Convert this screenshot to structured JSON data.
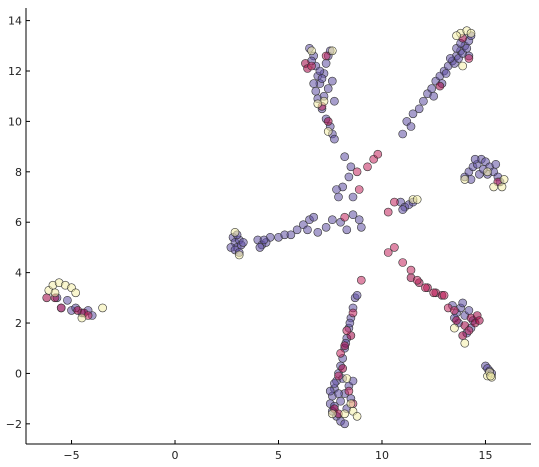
{
  "chart_data": {
    "type": "scatter",
    "title": "",
    "xlabel": "",
    "ylabel": "",
    "xlim": [
      -7.2,
      17.2
    ],
    "ylim": [
      -2.8,
      14.5
    ],
    "xticks": [
      -5,
      0,
      5,
      10,
      15
    ],
    "yticks": [
      -2,
      0,
      2,
      4,
      6,
      8,
      10,
      12,
      14
    ],
    "xtick_labels": [
      "−5",
      "0",
      "5",
      "10",
      "15"
    ],
    "ytick_labels": [
      "−2",
      "0",
      "2",
      "4",
      "6",
      "8",
      "10",
      "12",
      "14"
    ],
    "grid": false,
    "legend": "none",
    "colors": {
      "indigo": "#5e4fa2",
      "maroon": "#9e0142",
      "crimson": "#c2255c",
      "cream": "#f4efa8"
    },
    "point_alpha": 0.55,
    "series": [
      {
        "color": "indigo",
        "points": [
          [
            -5.5,
            2.6
          ],
          [
            -5.2,
            2.9
          ],
          [
            -5.0,
            2.5
          ],
          [
            -4.8,
            2.6
          ],
          [
            -4.5,
            2.4
          ],
          [
            -4.2,
            2.5
          ],
          [
            -4.0,
            2.3
          ],
          [
            -5.7,
            3.0
          ],
          [
            2.8,
            5.4
          ],
          [
            2.9,
            5.2
          ],
          [
            3.0,
            5.0
          ],
          [
            3.1,
            5.3
          ],
          [
            3.2,
            5.1
          ],
          [
            2.7,
            5.0
          ],
          [
            3.0,
            5.5
          ],
          [
            3.3,
            5.2
          ],
          [
            2.9,
            4.9
          ],
          [
            3.1,
            4.8
          ],
          [
            4.0,
            5.3
          ],
          [
            4.2,
            5.1
          ],
          [
            4.4,
            5.2
          ],
          [
            4.6,
            5.4
          ],
          [
            4.1,
            5.0
          ],
          [
            4.3,
            5.3
          ],
          [
            5.0,
            5.4
          ],
          [
            5.3,
            5.5
          ],
          [
            5.6,
            5.5
          ],
          [
            5.9,
            5.7
          ],
          [
            6.2,
            5.9
          ],
          [
            6.5,
            6.1
          ],
          [
            6.7,
            6.2
          ],
          [
            6.4,
            5.7
          ],
          [
            6.9,
            5.6
          ],
          [
            7.3,
            5.8
          ],
          [
            7.6,
            6.1
          ],
          [
            8.0,
            6.0
          ],
          [
            8.3,
            5.7
          ],
          [
            8.6,
            6.3
          ],
          [
            8.9,
            6.1
          ],
          [
            9.0,
            5.8
          ],
          [
            7.9,
            7.0
          ],
          [
            8.1,
            7.4
          ],
          [
            8.4,
            7.8
          ],
          [
            8.5,
            8.2
          ],
          [
            8.2,
            8.6
          ],
          [
            7.8,
            7.3
          ],
          [
            8.6,
            7.0
          ],
          [
            6.5,
            12.9
          ],
          [
            6.7,
            12.6
          ],
          [
            6.8,
            12.2
          ],
          [
            6.9,
            11.8
          ],
          [
            7.0,
            11.5
          ],
          [
            7.2,
            11.9
          ],
          [
            7.3,
            12.3
          ],
          [
            7.4,
            12.6
          ],
          [
            7.5,
            12.8
          ],
          [
            6.8,
            11.2
          ],
          [
            6.9,
            10.9
          ],
          [
            7.1,
            10.5
          ],
          [
            7.3,
            10.1
          ],
          [
            7.5,
            9.8
          ],
          [
            7.6,
            9.5
          ],
          [
            7.7,
            9.3
          ],
          [
            7.0,
            12.0
          ],
          [
            6.6,
            12.4
          ],
          [
            7.1,
            11.7
          ],
          [
            7.6,
            11.6
          ],
          [
            7.4,
            11.3
          ],
          [
            7.2,
            11.0
          ],
          [
            7.7,
            10.8
          ],
          [
            6.7,
            11.5
          ],
          [
            11.2,
            10.0
          ],
          [
            11.5,
            10.3
          ],
          [
            11.8,
            10.5
          ],
          [
            12.0,
            10.8
          ],
          [
            12.2,
            11.1
          ],
          [
            12.4,
            11.3
          ],
          [
            12.6,
            11.6
          ],
          [
            12.8,
            11.8
          ],
          [
            13.0,
            12.0
          ],
          [
            13.2,
            12.2
          ],
          [
            13.4,
            12.4
          ],
          [
            13.6,
            12.6
          ],
          [
            13.8,
            12.8
          ],
          [
            14.0,
            13.0
          ],
          [
            14.2,
            13.2
          ],
          [
            14.3,
            13.4
          ],
          [
            13.5,
            12.3
          ],
          [
            13.7,
            12.5
          ],
          [
            13.9,
            12.7
          ],
          [
            14.1,
            12.9
          ],
          [
            13.3,
            12.5
          ],
          [
            13.6,
            12.9
          ],
          [
            14.2,
            12.6
          ],
          [
            13.8,
            13.1
          ],
          [
            11.0,
            9.5
          ],
          [
            11.4,
            9.8
          ],
          [
            12.9,
            11.5
          ],
          [
            12.5,
            11.0
          ],
          [
            13.1,
            11.9
          ],
          [
            14.0,
            7.8
          ],
          [
            14.2,
            8.0
          ],
          [
            14.4,
            8.2
          ],
          [
            14.6,
            8.3
          ],
          [
            14.8,
            8.5
          ],
          [
            15.0,
            8.4
          ],
          [
            15.2,
            8.2
          ],
          [
            15.4,
            8.0
          ],
          [
            15.6,
            7.8
          ],
          [
            15.7,
            7.6
          ],
          [
            14.3,
            7.7
          ],
          [
            14.7,
            7.9
          ],
          [
            15.1,
            7.9
          ],
          [
            15.5,
            8.3
          ],
          [
            14.9,
            8.1
          ],
          [
            14.5,
            8.5
          ],
          [
            10.9,
            6.8
          ],
          [
            11.1,
            6.6
          ],
          [
            11.3,
            6.7
          ],
          [
            11.5,
            6.8
          ],
          [
            11.0,
            6.5
          ],
          [
            13.4,
            2.7
          ],
          [
            13.6,
            2.4
          ],
          [
            13.8,
            2.6
          ],
          [
            14.0,
            2.3
          ],
          [
            14.2,
            2.5
          ],
          [
            14.4,
            2.1
          ],
          [
            13.7,
            2.0
          ],
          [
            14.1,
            1.6
          ],
          [
            14.3,
            1.8
          ],
          [
            13.5,
            2.2
          ],
          [
            13.9,
            2.8
          ],
          [
            15.0,
            0.3
          ],
          [
            15.1,
            0.2
          ],
          [
            15.2,
            0.1
          ],
          [
            15.3,
            0.0
          ],
          [
            8.7,
            3.0
          ],
          [
            8.6,
            2.6
          ],
          [
            8.5,
            2.2
          ],
          [
            8.4,
            1.8
          ],
          [
            8.3,
            1.4
          ],
          [
            8.2,
            1.0
          ],
          [
            8.1,
            0.6
          ],
          [
            8.0,
            0.3
          ],
          [
            7.9,
            0.0
          ],
          [
            7.8,
            -0.3
          ],
          [
            7.7,
            -0.6
          ],
          [
            7.6,
            -0.9
          ],
          [
            7.5,
            -1.2
          ],
          [
            7.6,
            -1.5
          ],
          [
            7.8,
            -1.7
          ],
          [
            8.0,
            -1.9
          ],
          [
            8.2,
            -2.0
          ],
          [
            8.0,
            -1.1
          ],
          [
            8.2,
            -0.8
          ],
          [
            8.4,
            -0.5
          ],
          [
            8.6,
            -0.3
          ],
          [
            8.3,
            -1.4
          ],
          [
            7.7,
            -0.4
          ],
          [
            7.9,
            -0.8
          ],
          [
            8.1,
            -0.2
          ],
          [
            7.5,
            -0.7
          ],
          [
            8.5,
            -1.0
          ],
          [
            7.7,
            -1.3
          ],
          [
            8.8,
            3.1
          ],
          [
            8.45,
            2.0
          ],
          [
            8.25,
            1.2
          ]
        ]
      },
      {
        "color": "maroon",
        "points": [
          [
            -6.2,
            3.0
          ],
          [
            -5.8,
            3.0
          ],
          [
            -4.7,
            2.5
          ],
          [
            -4.4,
            2.4
          ],
          [
            6.3,
            12.3
          ],
          [
            6.4,
            12.1
          ],
          [
            7.4,
            10.0
          ],
          [
            12.8,
            11.4
          ],
          [
            13.9,
            13.3
          ],
          [
            11.4,
            3.8
          ],
          [
            11.8,
            3.6
          ],
          [
            12.2,
            3.4
          ],
          [
            12.6,
            3.2
          ],
          [
            12.9,
            3.1
          ],
          [
            13.6,
            2.1
          ],
          [
            14.0,
            1.9
          ],
          [
            14.3,
            2.2
          ],
          [
            14.5,
            2.0
          ],
          [
            14.6,
            2.3
          ],
          [
            13.9,
            1.5
          ],
          [
            14.7,
            2.1
          ],
          [
            8.2,
            1.1
          ],
          [
            8.5,
            1.5
          ],
          [
            7.7,
            -1.4
          ],
          [
            7.9,
            -1.6
          ],
          [
            8.1,
            0.2
          ]
        ]
      },
      {
        "color": "crimson",
        "points": [
          [
            -5.5,
            2.6
          ],
          [
            -4.2,
            2.3
          ],
          [
            8.2,
            6.2
          ],
          [
            8.9,
            7.3
          ],
          [
            9.3,
            8.2
          ],
          [
            9.6,
            8.5
          ],
          [
            9.8,
            8.7
          ],
          [
            8.8,
            8.0
          ],
          [
            10.3,
            6.4
          ],
          [
            10.6,
            6.8
          ],
          [
            10.3,
            4.8
          ],
          [
            10.6,
            5.0
          ],
          [
            11.0,
            4.4
          ],
          [
            11.4,
            4.1
          ],
          [
            11.7,
            3.7
          ],
          [
            12.1,
            3.4
          ],
          [
            12.5,
            3.2
          ],
          [
            13.0,
            3.1
          ],
          [
            13.2,
            2.6
          ],
          [
            13.5,
            2.5
          ],
          [
            14.2,
            1.7
          ],
          [
            8.0,
            0.8
          ],
          [
            8.3,
            1.7
          ],
          [
            8.6,
            2.4
          ],
          [
            8.6,
            -1.2
          ],
          [
            7.9,
            -0.1
          ],
          [
            8.4,
            -0.7
          ],
          [
            7.3,
            12.6
          ],
          [
            6.6,
            12.2
          ],
          [
            14.2,
            12.5
          ],
          [
            15.6,
            7.6
          ],
          [
            9.0,
            3.7
          ],
          [
            7.1,
            10.6
          ]
        ]
      },
      {
        "color": "cream",
        "points": [
          [
            -6.1,
            3.3
          ],
          [
            -5.9,
            3.5
          ],
          [
            -5.6,
            3.6
          ],
          [
            -5.3,
            3.5
          ],
          [
            -5.0,
            3.4
          ],
          [
            -4.8,
            3.2
          ],
          [
            -5.8,
            3.2
          ],
          [
            -4.5,
            2.2
          ],
          [
            -3.5,
            2.6
          ],
          [
            3.1,
            4.7
          ],
          [
            2.9,
            5.6
          ],
          [
            6.6,
            12.8
          ],
          [
            7.6,
            12.8
          ],
          [
            7.2,
            10.8
          ],
          [
            6.9,
            10.7
          ],
          [
            7.4,
            9.6
          ],
          [
            13.8,
            13.5
          ],
          [
            14.1,
            13.6
          ],
          [
            14.3,
            13.5
          ],
          [
            13.6,
            13.4
          ],
          [
            13.9,
            12.2
          ],
          [
            14.0,
            7.7
          ],
          [
            15.4,
            7.4
          ],
          [
            15.8,
            7.4
          ],
          [
            15.9,
            7.7
          ],
          [
            15.1,
            8.0
          ],
          [
            11.5,
            6.9
          ],
          [
            11.7,
            6.9
          ],
          [
            13.5,
            1.8
          ],
          [
            14.0,
            1.2
          ],
          [
            15.1,
            -0.1
          ],
          [
            15.2,
            0.05
          ],
          [
            15.3,
            -0.15
          ],
          [
            15.25,
            -0.1
          ],
          [
            8.2,
            -1.6
          ],
          [
            8.6,
            -1.5
          ],
          [
            8.8,
            -1.7
          ],
          [
            8.3,
            -0.2
          ],
          [
            8.5,
            -1.2
          ],
          [
            7.6,
            -1.6
          ]
        ]
      }
    ]
  }
}
